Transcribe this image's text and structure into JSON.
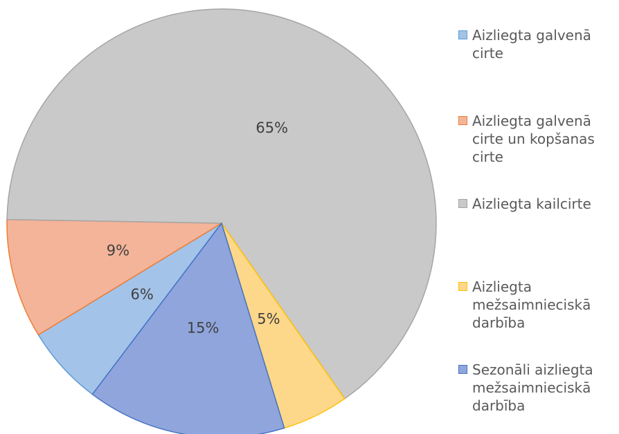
{
  "chart_data": {
    "type": "pie",
    "categories": [
      "Aizliegta galvenā cirte",
      "Aizliegta galvenā cirte un kopšanas cirte",
      "Aizliegta kailcirte",
      "Aizliegta mežsaimnieciskā darbība",
      "Sezonāli aizliegta mežsaimnieciskā darbība"
    ],
    "values": [
      6,
      9,
      65,
      5,
      15
    ],
    "value_labels": [
      "6%",
      "9%",
      "65%",
      "5%",
      "15%"
    ],
    "colors": [
      "#a4c3e8",
      "#f4b49a",
      "#c9c9c9",
      "#fdd78a",
      "#8fa5dc"
    ],
    "legend": "right"
  }
}
